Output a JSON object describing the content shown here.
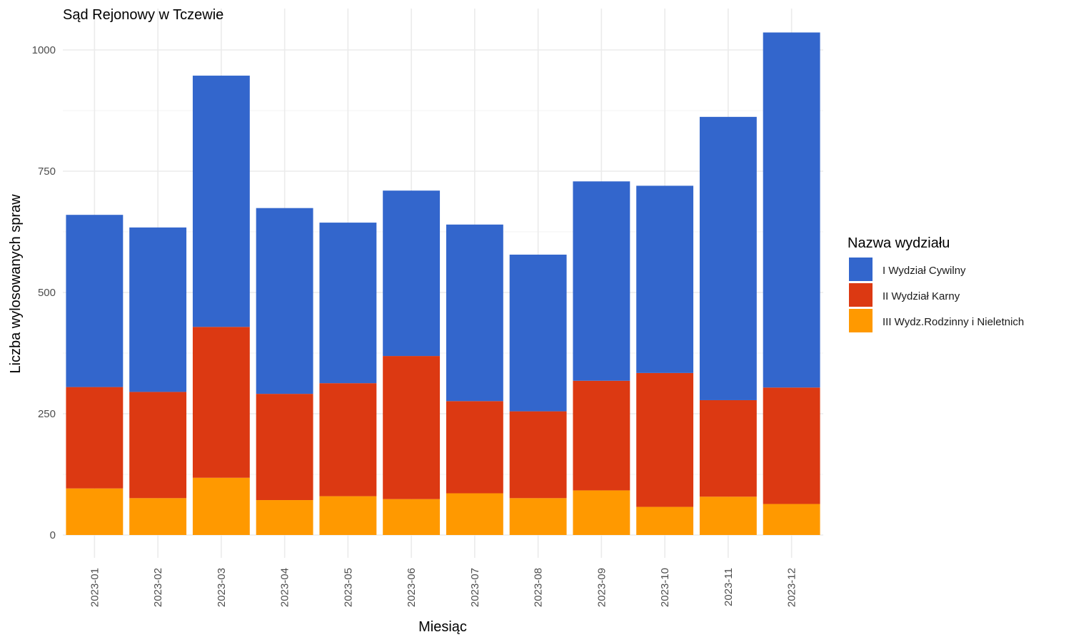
{
  "chart_data": {
    "type": "bar",
    "stacked": true,
    "title": "Sąd Rejonowy w Tczewie",
    "xlabel": "Miesiąc",
    "ylabel": "Liczba wylosowanych spraw",
    "ylim": [
      0,
      1050
    ],
    "y_ticks": [
      "0",
      "250",
      "500",
      "750",
      "1000"
    ],
    "y_tick_values": [
      0,
      250,
      500,
      750,
      1000
    ],
    "grid": true,
    "legend_title": "Nazwa wydziału",
    "legend_position": "right",
    "categories": [
      "2023-01",
      "2023-02",
      "2023-03",
      "2023-04",
      "2023-05",
      "2023-06",
      "2023-07",
      "2023-08",
      "2023-09",
      "2023-10",
      "2023-11",
      "2023-12"
    ],
    "series": [
      {
        "name": "I Wydział Cywilny",
        "color": "#3366cc",
        "values": [
          355,
          339,
          518,
          383,
          331,
          341,
          364,
          323,
          411,
          386,
          584,
          732
        ]
      },
      {
        "name": "II Wydział Karny",
        "color": "#dc3912",
        "values": [
          209,
          219,
          311,
          219,
          233,
          295,
          190,
          179,
          226,
          276,
          199,
          240
        ]
      },
      {
        "name": "III Wydz.Rodzinny i Nieletnich",
        "color": "#ff9900",
        "values": [
          96,
          76,
          118,
          72,
          80,
          74,
          86,
          76,
          92,
          58,
          79,
          64
        ]
      }
    ]
  }
}
